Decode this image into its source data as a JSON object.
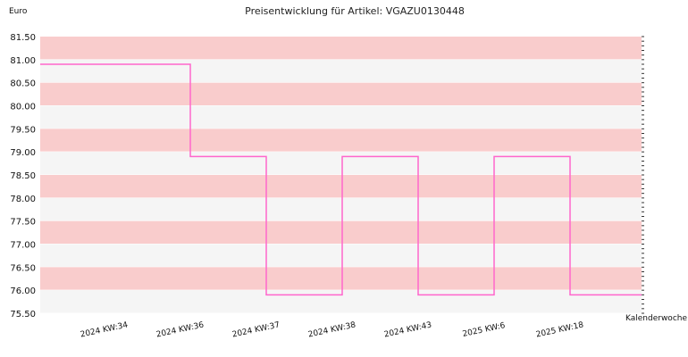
{
  "chart_data": {
    "type": "line",
    "title": "Preisentwicklung für Artikel: VGAZU0130448",
    "ylabel": "Euro",
    "xlabel": "Kalenderwoche",
    "ylim": [
      75.5,
      81.5
    ],
    "yticks": [
      "81.50",
      "81.00",
      "80.50",
      "80.00",
      "79.50",
      "79.00",
      "78.50",
      "78.00",
      "77.50",
      "77.00",
      "76.50",
      "76.00",
      "75.50"
    ],
    "categories": [
      "2024 KW:34",
      "2024 KW:36",
      "2024 KW:37",
      "2024 KW:38",
      "2024 KW:43",
      "2025 KW:6",
      "2025 KW:18"
    ],
    "series": [
      {
        "values": [
          80.9,
          78.9,
          75.9,
          78.9,
          75.9,
          78.9,
          75.9
        ]
      }
    ],
    "line_color": "#ff66cc",
    "band_colors": [
      "#f9cccc",
      "#f5f5f5"
    ],
    "grid": true,
    "line_style": "step"
  }
}
